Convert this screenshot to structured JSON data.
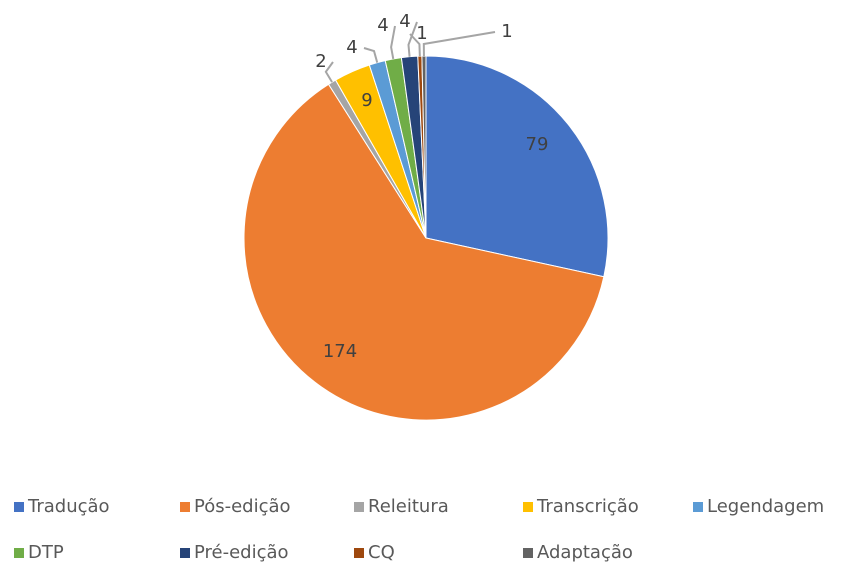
{
  "chart_data": {
    "type": "pie",
    "categories": [
      "Tradução",
      "Pós-edição",
      "Releitura",
      "Transcrição",
      "Legendagem",
      "DTP",
      "Pré-edição",
      "CQ",
      "Adaptação"
    ],
    "values": [
      79,
      174,
      2,
      9,
      4,
      4,
      4,
      1,
      1
    ],
    "colors": [
      "#4472c4",
      "#ed7d31",
      "#a5a5a5",
      "#ffc000",
      "#5b9bd5",
      "#70ad47",
      "#264478",
      "#9e480e",
      "#636363"
    ],
    "legend": "bottom"
  }
}
